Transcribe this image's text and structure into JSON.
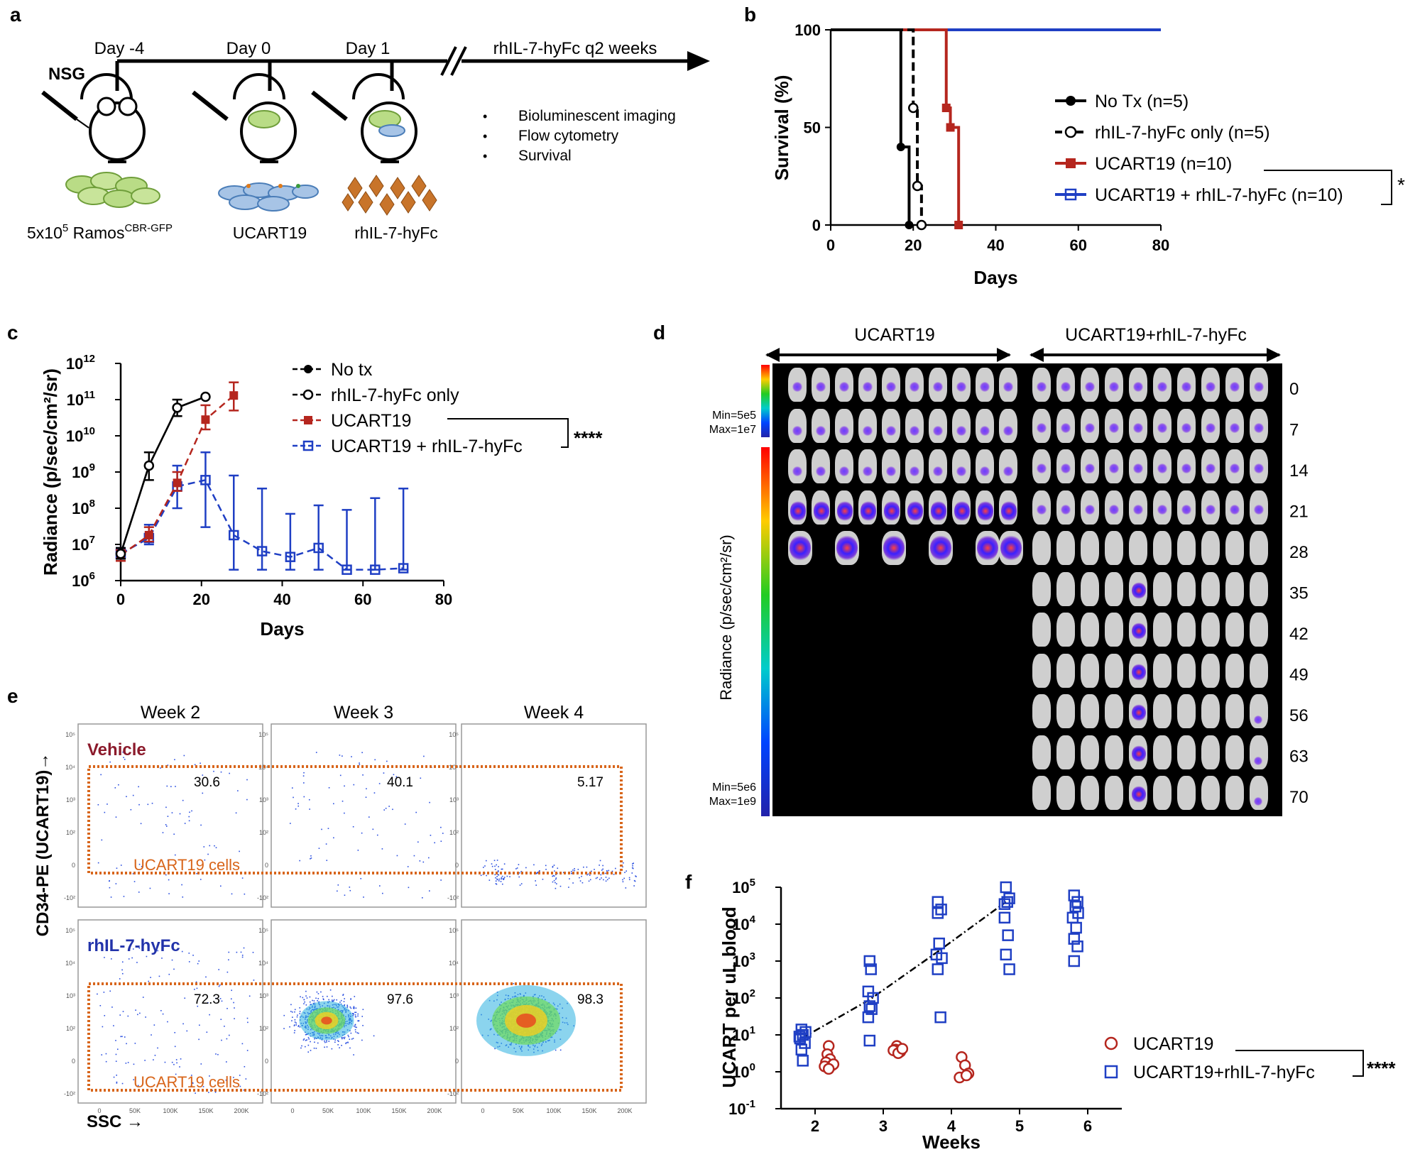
{
  "panels": {
    "a": {
      "label": "a",
      "timeline": {
        "day_m4": "Day -4",
        "day_0": "Day 0",
        "day_1": "Day 1",
        "dosing": "rhIL-7-hyFc q2 weeks",
        "strain": "NSG",
        "readouts": [
          "Bioluminescent imaging",
          "Flow cytometry",
          "Survival"
        ],
        "bullet": "•",
        "injection_1_prefix": "5x10",
        "injection_1_exp": "5",
        "injection_1_cell": " Ramos",
        "injection_1_super": "CBR-GFP",
        "injection_2": "UCART19",
        "injection_3": "rhIL-7-hyFc"
      }
    },
    "b": {
      "label": "b",
      "significance": "*",
      "chart_data": {
        "type": "line",
        "title": "",
        "xlabel": "Days",
        "ylabel": "Survival (%)",
        "xlim": [
          0,
          80
        ],
        "ylim": [
          0,
          100
        ],
        "xticks": [
          "0",
          "20",
          "40",
          "60",
          "80"
        ],
        "yticks": [
          "0",
          "50",
          "100"
        ],
        "series": [
          {
            "name": "No Tx (n=5)",
            "color": "#000000",
            "dashed": false,
            "marker": "filled-circle",
            "steps": [
              [
                0,
                100
              ],
              [
                17,
                100
              ],
              [
                17,
                40
              ],
              [
                19,
                40
              ],
              [
                19,
                0
              ]
            ],
            "markers": [
              [
                17,
                40
              ],
              [
                19,
                0
              ]
            ]
          },
          {
            "name": "rhIL-7-hyFc only (n=5)",
            "color": "#000000",
            "dashed": true,
            "marker": "open-circle",
            "steps": [
              [
                0,
                100
              ],
              [
                20,
                100
              ],
              [
                20,
                60
              ],
              [
                21,
                60
              ],
              [
                21,
                20
              ],
              [
                22,
                20
              ],
              [
                22,
                0
              ]
            ],
            "markers": [
              [
                20,
                60
              ],
              [
                21,
                20
              ],
              [
                22,
                0
              ]
            ]
          },
          {
            "name": "UCART19 (n=10)",
            "color": "#b5261e",
            "dashed": false,
            "marker": "filled-square",
            "steps": [
              [
                0,
                100
              ],
              [
                28,
                100
              ],
              [
                28,
                60
              ],
              [
                29,
                60
              ],
              [
                29,
                50
              ],
              [
                31,
                50
              ],
              [
                31,
                0
              ]
            ],
            "markers": [
              [
                28,
                60
              ],
              [
                29,
                50
              ],
              [
                31,
                0
              ]
            ]
          },
          {
            "name": "UCART19 + rhIL-7-hyFc (n=10)",
            "color": "#1f3fc4",
            "dashed": false,
            "marker": "open-square",
            "steps": [
              [
                0,
                100
              ],
              [
                80,
                100
              ]
            ],
            "markers": []
          }
        ]
      }
    },
    "c": {
      "label": "c",
      "significance": "****",
      "chart_data": {
        "type": "line",
        "xlabel": "Days",
        "ylabel": "Radiance (p/sec/cm²/sr)",
        "yscale": "log",
        "xlim": [
          0,
          80
        ],
        "ylim_exp": [
          6,
          12
        ],
        "xticks": [
          "0",
          "20",
          "40",
          "60",
          "80"
        ],
        "ytick_base": "10",
        "ytick_exps": [
          "6",
          "7",
          "8",
          "9",
          "10",
          "11",
          "12"
        ],
        "series": [
          {
            "name": "No tx",
            "color": "#000000",
            "marker": "filled-circle",
            "x": [
              0,
              7,
              14,
              21
            ],
            "y": [
              5500000.0,
              1500000000.0,
              60000000000.0,
              120000000000.0
            ],
            "err_hi": [
              8000000.0,
              3500000000.0,
              100000000000.0,
              null
            ],
            "err_lo": [
              4000000.0,
              600000000.0,
              35000000000.0,
              null
            ]
          },
          {
            "name": "rhIL-7-hyFc only",
            "color": "#000000",
            "marker": "open-circle",
            "x": [
              0,
              7,
              14,
              21
            ],
            "y": [
              5500000.0,
              1500000000.0,
              60000000000.0,
              120000000000.0
            ],
            "err_hi": [
              null,
              null,
              null,
              null
            ],
            "err_lo": [
              null,
              null,
              null,
              null
            ]
          },
          {
            "name": "UCART19",
            "color": "#b5261e",
            "marker": "filled-square",
            "x": [
              0,
              7,
              14,
              21,
              28
            ],
            "y": [
              5000000.0,
              18000000.0,
              500000000.0,
              28000000000.0,
              130000000000.0
            ],
            "err_hi": [
              7000000.0,
              30000000.0,
              1000000000.0,
              70000000000.0,
              300000000000.0
            ],
            "err_lo": [
              3500000.0,
              12000000.0,
              300000000.0,
              15000000000.0,
              50000000000.0
            ]
          },
          {
            "name": "UCART19 + rhIL-7-hyFc",
            "color": "#1f3fc4",
            "marker": "open-square",
            "x": [
              0,
              7,
              14,
              21,
              28,
              35,
              42,
              49,
              56,
              63,
              70
            ],
            "y": [
              5500000.0,
              15000000.0,
              400000000.0,
              600000000.0,
              18000000.0,
              6500000.0,
              4500000.0,
              8000000.0,
              2000000.0,
              2000000.0,
              2200000.0
            ],
            "err_hi": [
              8000000.0,
              35000000.0,
              1500000000.0,
              3500000000.0,
              800000000.0,
              350000000.0,
              70000000.0,
              120000000.0,
              90000000.0,
              190000000.0,
              350000000.0
            ],
            "err_lo": [
              4000000.0,
              10000000.0,
              100000000.0,
              30000000.0,
              2000000.0,
              2000000.0,
              2000000.0,
              2000000.0,
              2000000.0,
              2000000.0,
              2000000.0
            ]
          }
        ]
      }
    },
    "d": {
      "label": "d",
      "group_left": "UCART19",
      "group_right": "UCART19+rhIL-7-hyFc",
      "scale_top_min": "Min=5e5",
      "scale_top_max": "Max=1e7",
      "scale_bottom_min": "Min=5e6",
      "scale_bottom_max": "Max=1e9",
      "radiance_label": "Radiance (p/sec/cm²/sr)",
      "days": [
        "0",
        "7",
        "14",
        "21",
        "28",
        "35",
        "42",
        "49",
        "56",
        "63",
        "70"
      ]
    },
    "e": {
      "label": "e",
      "weeks": [
        "Week 2",
        "Week 3",
        "Week 4"
      ],
      "row_vehicle": "Vehicle",
      "row_il7": "rhIL-7-hyFc",
      "gate_label": "UCART19 cells",
      "vehicle_values": [
        "30.6",
        "40.1",
        "5.17"
      ],
      "il7_values": [
        "72.3",
        "97.6",
        "98.3"
      ],
      "ylabel": "CD34-PE (UCART19)→",
      "xlabel": "SSC →",
      "y_ticks": [
        "10⁵",
        "10⁴",
        "10³",
        "10²",
        "0",
        "-10²"
      ],
      "x_ticks": [
        "0",
        "50K",
        "100K",
        "150K",
        "200K"
      ]
    },
    "f": {
      "label": "f",
      "significance": "****",
      "chart_data": {
        "type": "scatter",
        "xlabel": "Weeks",
        "ylabel": "UCART per uL blood",
        "yscale": "log",
        "xlim": [
          1.5,
          6.5
        ],
        "ylim_exp": [
          -1,
          5
        ],
        "xticks": [
          "2",
          "3",
          "4",
          "5",
          "6"
        ],
        "ytick_base": "10",
        "ytick_exps": [
          "-1",
          "0",
          "1",
          "2",
          "3",
          "4",
          "5"
        ],
        "series": [
          {
            "name": "UCART19",
            "color": "#b5261e",
            "marker": "open-circle",
            "points": [
              [
                2.2,
                5
              ],
              [
                2.18,
                3
              ],
              [
                2.22,
                2.2
              ],
              [
                2.16,
                1.8
              ],
              [
                2.25,
                1.5
              ],
              [
                2.2,
                1.3
              ],
              [
                2.14,
                1.4
              ],
              [
                2.27,
                1.6
              ],
              [
                2.2,
                1.2
              ],
              [
                3.2,
                5
              ],
              [
                3.18,
                4
              ],
              [
                3.25,
                3.5
              ],
              [
                3.15,
                3.8
              ],
              [
                3.22,
                3.2
              ],
              [
                3.28,
                4.2
              ],
              [
                4.15,
                2.5
              ],
              [
                4.2,
                1.5
              ],
              [
                4.25,
                0.9
              ],
              [
                4.12,
                0.7
              ],
              [
                4.22,
                0.8
              ]
            ]
          },
          {
            "name": "UCART19+rhIL-7-hyFc",
            "color": "#1f3fc4",
            "marker": "open-square",
            "points": [
              [
                1.8,
                14
              ],
              [
                1.82,
                10
              ],
              [
                1.78,
                8
              ],
              [
                1.85,
                6
              ],
              [
                1.8,
                4
              ],
              [
                1.82,
                2
              ],
              [
                1.86,
                12
              ],
              [
                1.77,
                9
              ],
              [
                2.8,
                1000
              ],
              [
                2.82,
                600
              ],
              [
                2.78,
                150
              ],
              [
                2.85,
                100
              ],
              [
                2.8,
                60
              ],
              [
                2.83,
                50
              ],
              [
                2.78,
                30
              ],
              [
                2.8,
                7
              ],
              [
                3.8,
                40000
              ],
              [
                3.85,
                25000
              ],
              [
                3.82,
                3000
              ],
              [
                3.78,
                1500
              ],
              [
                3.86,
                1200
              ],
              [
                3.8,
                600
              ],
              [
                3.84,
                30
              ],
              [
                3.8,
                20000
              ],
              [
                4.8,
                100000
              ],
              [
                4.85,
                50000
              ],
              [
                4.82,
                40000
              ],
              [
                4.78,
                15000
              ],
              [
                4.83,
                5000
              ],
              [
                4.8,
                1500
              ],
              [
                4.85,
                600
              ],
              [
                4.78,
                35000
              ],
              [
                5.8,
                60000
              ],
              [
                5.85,
                40000
              ],
              [
                5.82,
                30000
              ],
              [
                5.78,
                15000
              ],
              [
                5.83,
                8000
              ],
              [
                5.8,
                4000
              ],
              [
                5.85,
                2500
              ],
              [
                5.8,
                1000
              ],
              [
                5.86,
                20000
              ]
            ]
          }
        ],
        "trend": [
          [
            1.8,
            8
          ],
          [
            2.8,
            90
          ],
          [
            3.8,
            1800
          ],
          [
            4.8,
            40000
          ]
        ]
      }
    }
  }
}
